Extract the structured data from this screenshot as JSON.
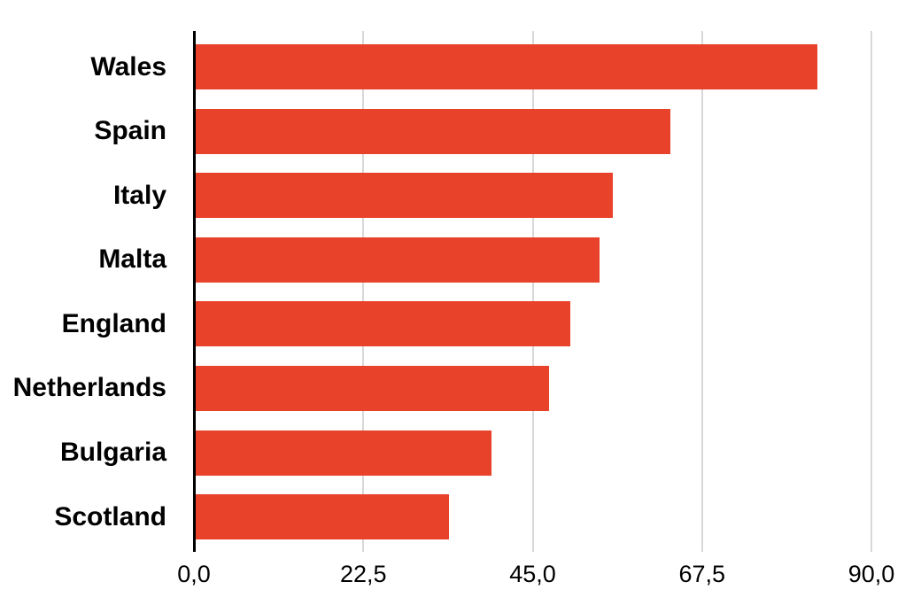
{
  "chart_data": {
    "type": "bar",
    "orientation": "horizontal",
    "title": "",
    "xlabel": "",
    "ylabel": "",
    "categories": [
      "Wales",
      "Spain",
      "Italy",
      "Malta",
      "England",
      "Netherlands",
      "Bulgaria",
      "Scotland"
    ],
    "values": [
      82.8,
      63.3,
      55.6,
      53.9,
      50.0,
      47.2,
      39.5,
      33.9
    ],
    "xlim": [
      0,
      90
    ],
    "x_ticks": {
      "values": [
        0,
        22.5,
        45,
        67.5,
        90
      ],
      "labels": [
        "0,0",
        "22,5",
        "45,0",
        "67,5",
        "90,0"
      ]
    },
    "decimal_separator": ",",
    "grid": true,
    "legend": false,
    "colors": {
      "bar": "#E8432A",
      "gridline": "#D8D8D8",
      "axis_line": "#000000",
      "category_label": "#000000",
      "tick_label": "#000000",
      "background": "#FFFFFF"
    }
  }
}
